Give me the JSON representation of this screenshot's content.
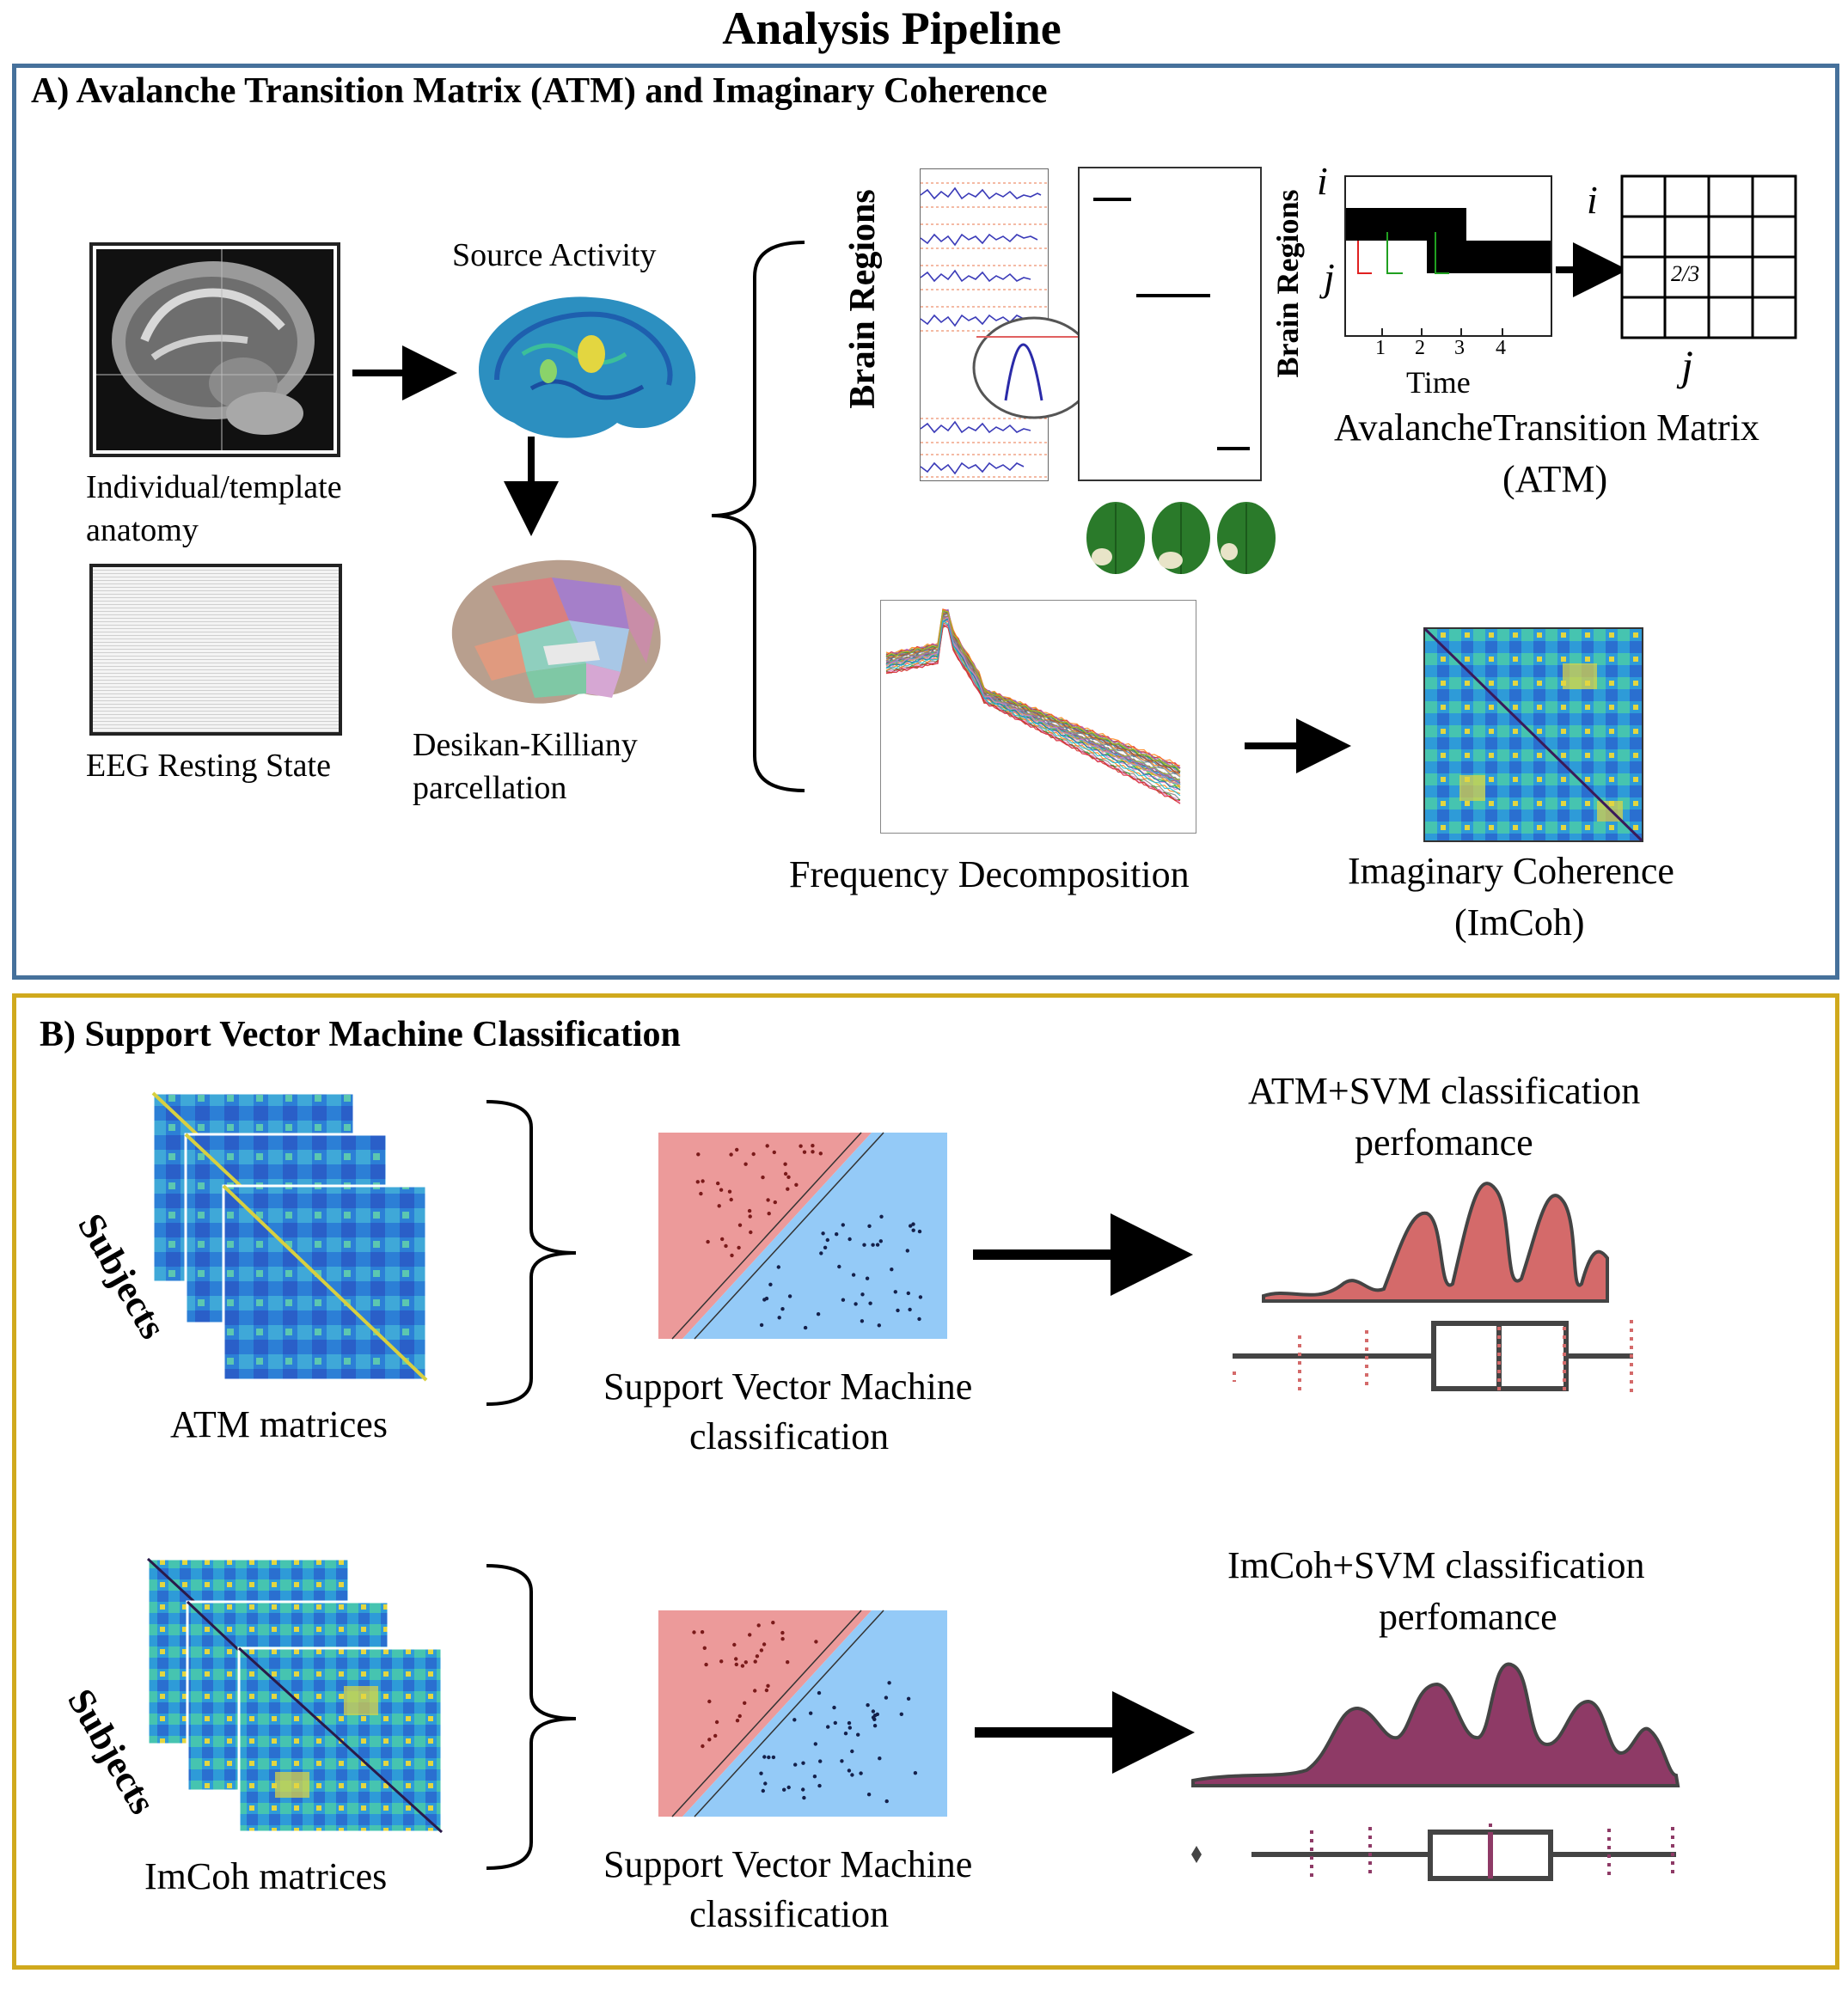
{
  "title": "Analysis Pipeline",
  "colors": {
    "panel_a_border": "#46719b",
    "panel_b_border": "#d0a91d",
    "svm_red": "#ec9a9a",
    "svm_blue": "#94caf7",
    "atm_dist": "#d46a6a",
    "imcoh_dist": "#8e3a66"
  },
  "panel_a": {
    "title": "A) Avalanche Transition Matrix (ATM) and Imaginary Coherence",
    "mri_label_1": "Individual/template",
    "mri_label_2": "anatomy",
    "eeg_label": "EEG Resting State",
    "source_label": "Source Activity",
    "parcellation_label_1": "Desikan-Killiany",
    "parcellation_label_2": "parcellation",
    "brain_regions_label": "Brain Regions",
    "brain_regions_label_2": "Brain Regions",
    "atm_i": "i",
    "atm_j": "j",
    "time_label": "Time",
    "time_ticks": [
      "1",
      "2",
      "3",
      "4"
    ],
    "matrix_i": "i",
    "matrix_j": "j",
    "matrix_value": "2/3",
    "atm_label_1": "AvalancheTransition Matrix",
    "atm_label_2": "(ATM)",
    "freq_label": "Frequency Decomposition",
    "imcoh_label_1": "Imaginary Coherence",
    "imcoh_label_2": "(ImCoh)"
  },
  "panel_b": {
    "title": "B) Support Vector Machine Classification",
    "subjects_1": "Subjects",
    "subjects_2": "Subjects",
    "atm_matrices": "ATM matrices",
    "imcoh_matrices": "ImCoh matrices",
    "svm_label_1a": "Support Vector Machine",
    "svm_label_1b": "classification",
    "svm_label_2a": "Support Vector Machine",
    "svm_label_2b": "classification",
    "atm_perf_1": "ATM+SVM classification",
    "atm_perf_2": "perfomance",
    "imcoh_perf_1": "ImCoh+SVM classification",
    "imcoh_perf_2": "perfomance"
  }
}
